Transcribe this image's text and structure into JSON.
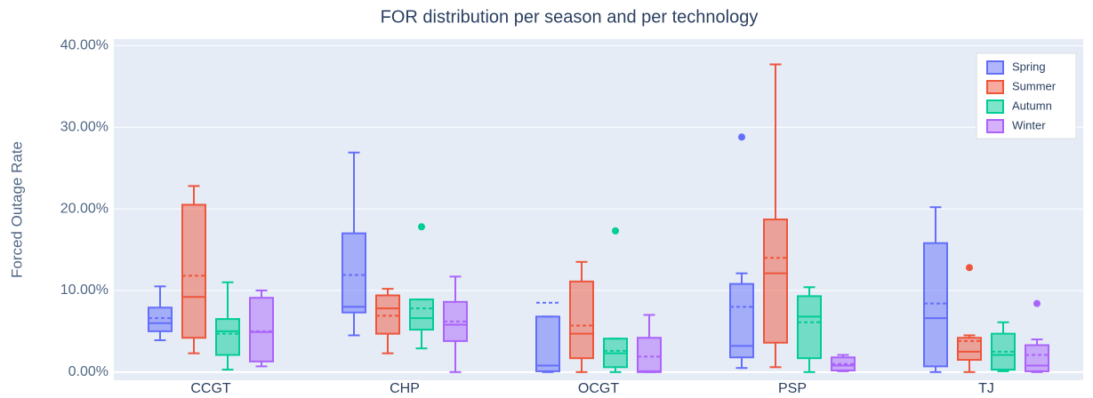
{
  "chart_data": {
    "type": "box",
    "title": "FOR distribution per season and per technology",
    "y_label": "Forced Outage Rate",
    "categories": [
      "CCGT",
      "CHP",
      "OCGT",
      "PSP",
      "TJ"
    ],
    "ylim": [
      -1,
      40.8
    ],
    "yticks": [
      {
        "value": 0,
        "label": "0.00%"
      },
      {
        "value": 10,
        "label": "10.00%"
      },
      {
        "value": 20,
        "label": "20.00%"
      },
      {
        "value": 30,
        "label": "30.00%"
      },
      {
        "value": 40,
        "label": "40.00%"
      }
    ],
    "grid": true,
    "legend": "top-right",
    "series": [
      {
        "name": "Spring",
        "color": "#636efa",
        "lowerfence": [
          3.9,
          4.5,
          0,
          0.5,
          0
        ],
        "q1": [
          5.0,
          7.3,
          0.1,
          1.8,
          0.7
        ],
        "median": [
          6.0,
          8.0,
          0.8,
          3.2,
          6.6
        ],
        "q3": [
          7.9,
          17.0,
          6.8,
          10.8,
          15.8
        ],
        "upperfence": [
          10.5,
          26.9,
          6.8,
          12.1,
          20.2
        ],
        "mean": [
          6.6,
          11.9,
          8.5,
          8.0,
          8.4
        ],
        "outliers": [
          [],
          [],
          [],
          [
            28.8
          ],
          []
        ]
      },
      {
        "name": "Summer",
        "color": "#ef553b",
        "lowerfence": [
          2.3,
          2.3,
          0,
          0.6,
          0
        ],
        "q1": [
          4.2,
          4.7,
          1.7,
          3.6,
          1.5
        ],
        "median": [
          9.2,
          7.8,
          4.7,
          12.1,
          2.5
        ],
        "q3": [
          20.5,
          9.4,
          11.1,
          18.7,
          4.2
        ],
        "upperfence": [
          22.8,
          10.2,
          13.5,
          37.7,
          4.5
        ],
        "mean": [
          11.8,
          6.9,
          5.7,
          14.0,
          3.8
        ],
        "outliers": [
          [],
          [],
          [],
          [],
          [
            12.8
          ]
        ]
      },
      {
        "name": "Autumn",
        "color": "#00cc96",
        "lowerfence": [
          0.3,
          2.9,
          0,
          0,
          0.1
        ],
        "q1": [
          2.1,
          5.2,
          0.6,
          1.7,
          0.3
        ],
        "median": [
          5.0,
          6.6,
          2.3,
          6.8,
          2.1
        ],
        "q3": [
          6.5,
          8.9,
          4.1,
          9.3,
          4.7
        ],
        "upperfence": [
          11.0,
          8.9,
          4.1,
          10.4,
          6.1
        ],
        "mean": [
          4.7,
          7.8,
          2.6,
          6.1,
          2.5
        ],
        "outliers": [
          [],
          [
            17.8
          ],
          [
            17.3
          ],
          [],
          []
        ]
      },
      {
        "name": "Winter",
        "color": "#ab63fa",
        "lowerfence": [
          0.7,
          0,
          0,
          0.1,
          0
        ],
        "q1": [
          1.3,
          3.8,
          0,
          0.2,
          0.1
        ],
        "median": [
          4.9,
          5.8,
          0.1,
          0.8,
          0.8
        ],
        "q3": [
          9.1,
          8.6,
          4.2,
          1.8,
          3.3
        ],
        "upperfence": [
          10.0,
          11.7,
          7.0,
          2.1,
          4.0
        ],
        "mean": [
          5.0,
          6.2,
          1.9,
          1.0,
          2.1
        ],
        "outliers": [
          [],
          [],
          [],
          [],
          [
            8.4
          ]
        ]
      }
    ]
  }
}
